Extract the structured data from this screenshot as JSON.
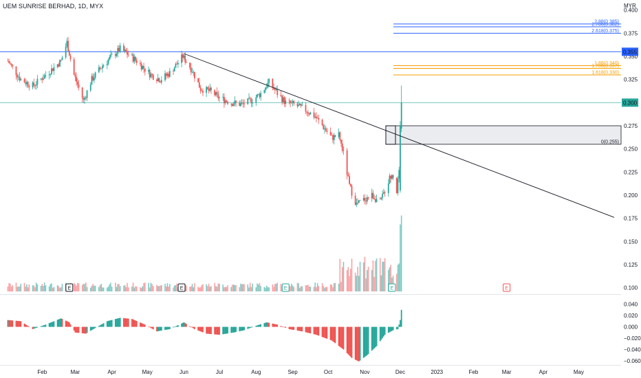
{
  "header": {
    "title": "UEM SUNRISE BERHAD, 1D, MYX"
  },
  "colors": {
    "up": "#26a69a",
    "down": "#ef5350",
    "fib_blue": "#2962ff",
    "fib_orange": "#f59d00",
    "resistance": "#2962ff",
    "current_line": "#26a69a",
    "trendline": "#131722"
  },
  "chart_data": [
    {
      "type": "candlestick",
      "title": "UEM SUNRISE BERHAD, 1D, MYX",
      "currency": "MYR",
      "y_ticks": [
        "0.400",
        "0.375",
        "0.350",
        "0.325",
        "0.300",
        "0.275",
        "0.250",
        "0.225",
        "0.200",
        "0.175",
        "0.150",
        "0.125",
        "0.100"
      ],
      "x_ticks": [
        "Feb",
        "Mar",
        "Apr",
        "May",
        "Jun",
        "Jul",
        "Aug",
        "Sep",
        "Oct",
        "Nov",
        "Dec",
        "2023",
        "Feb",
        "Mar",
        "Apr",
        "May"
      ],
      "ylim": [
        0.093,
        0.405
      ],
      "last_price": "0.300",
      "resistance_price": "0.355",
      "fib_levels": [
        {
          "label": "2.88(0.385)",
          "value": 0.385,
          "color": "blue"
        },
        {
          "label": "2.786(0.382)",
          "value": 0.382,
          "color": "blue"
        },
        {
          "label": "2.618(0.375)",
          "value": 0.375,
          "color": "blue"
        },
        {
          "label": "1.88(0.340)",
          "value": 0.34,
          "color": "orange"
        },
        {
          "label": "1.786(0.337)",
          "value": 0.337,
          "color": "orange"
        },
        {
          "label": "1.618(0.330)",
          "value": 0.33,
          "color": "orange"
        },
        {
          "label": "0(0.255)",
          "value": 0.255,
          "color": "gray"
        }
      ],
      "zone": {
        "low": 0.255,
        "high": 0.275
      },
      "trendline": {
        "start": {
          "date": "2022-06-01",
          "price": 0.353
        },
        "end": {
          "date": "2023-05-31",
          "price": 0.176
        }
      },
      "close_points": [
        {
          "date": "2022-01-03",
          "close": 0.345
        },
        {
          "date": "2022-01-14",
          "close": 0.325
        },
        {
          "date": "2022-01-24",
          "close": 0.318
        },
        {
          "date": "2022-02-04",
          "close": 0.33
        },
        {
          "date": "2022-02-17",
          "close": 0.345
        },
        {
          "date": "2022-02-22",
          "close": 0.365
        },
        {
          "date": "2022-02-28",
          "close": 0.33
        },
        {
          "date": "2022-03-08",
          "close": 0.302
        },
        {
          "date": "2022-03-15",
          "close": 0.325
        },
        {
          "date": "2022-03-24",
          "close": 0.34
        },
        {
          "date": "2022-04-01",
          "close": 0.35
        },
        {
          "date": "2022-04-08",
          "close": 0.358
        },
        {
          "date": "2022-04-15",
          "close": 0.352
        },
        {
          "date": "2022-04-22",
          "close": 0.345
        },
        {
          "date": "2022-05-04",
          "close": 0.33
        },
        {
          "date": "2022-05-12",
          "close": 0.325
        },
        {
          "date": "2022-05-20",
          "close": 0.332
        },
        {
          "date": "2022-05-31",
          "close": 0.35
        },
        {
          "date": "2022-06-08",
          "close": 0.335
        },
        {
          "date": "2022-06-15",
          "close": 0.315
        },
        {
          "date": "2022-06-24",
          "close": 0.312
        },
        {
          "date": "2022-07-01",
          "close": 0.305
        },
        {
          "date": "2022-07-11",
          "close": 0.3
        },
        {
          "date": "2022-07-20",
          "close": 0.298
        },
        {
          "date": "2022-07-29",
          "close": 0.303
        },
        {
          "date": "2022-08-05",
          "close": 0.31
        },
        {
          "date": "2022-08-12",
          "close": 0.322
        },
        {
          "date": "2022-08-19",
          "close": 0.31
        },
        {
          "date": "2022-08-26",
          "close": 0.3
        },
        {
          "date": "2022-09-02",
          "close": 0.298
        },
        {
          "date": "2022-09-12",
          "close": 0.292
        },
        {
          "date": "2022-09-20",
          "close": 0.285
        },
        {
          "date": "2022-09-28",
          "close": 0.272
        },
        {
          "date": "2022-10-04",
          "close": 0.262
        },
        {
          "date": "2022-10-10",
          "close": 0.265
        },
        {
          "date": "2022-10-14",
          "close": 0.245
        },
        {
          "date": "2022-10-19",
          "close": 0.21
        },
        {
          "date": "2022-10-25",
          "close": 0.19
        },
        {
          "date": "2022-10-31",
          "close": 0.195
        },
        {
          "date": "2022-11-07",
          "close": 0.2
        },
        {
          "date": "2022-11-14",
          "close": 0.192
        },
        {
          "date": "2022-11-21",
          "close": 0.215
        },
        {
          "date": "2022-11-24",
          "close": 0.225
        },
        {
          "date": "2022-11-28",
          "close": 0.205
        },
        {
          "date": "2022-11-30",
          "close": 0.225
        },
        {
          "date": "2022-12-01",
          "close": 0.275
        },
        {
          "date": "2022-12-02",
          "close": 0.3
        }
      ],
      "volume_markers": [
        "E",
        "E",
        "E",
        "E",
        "E"
      ]
    },
    {
      "type": "histogram",
      "name": "momentum",
      "y_ticks": [
        "0.040",
        "0.020",
        "0.000",
        "−0.020",
        "−0.040",
        "−0.060"
      ],
      "ylim": [
        -0.066,
        0.048
      ],
      "points": [
        {
          "date": "2022-01-03",
          "value": 0.012
        },
        {
          "date": "2022-01-14",
          "value": 0.01
        },
        {
          "date": "2022-01-24",
          "value": -0.004
        },
        {
          "date": "2022-02-04",
          "value": 0.004
        },
        {
          "date": "2022-02-17",
          "value": 0.015
        },
        {
          "date": "2022-02-24",
          "value": 0.008
        },
        {
          "date": "2022-03-01",
          "value": -0.01
        },
        {
          "date": "2022-03-10",
          "value": -0.012
        },
        {
          "date": "2022-03-18",
          "value": -0.002
        },
        {
          "date": "2022-03-28",
          "value": 0.01
        },
        {
          "date": "2022-04-08",
          "value": 0.016
        },
        {
          "date": "2022-04-18",
          "value": 0.014
        },
        {
          "date": "2022-04-29",
          "value": 0.004
        },
        {
          "date": "2022-05-09",
          "value": -0.008
        },
        {
          "date": "2022-05-20",
          "value": -0.004
        },
        {
          "date": "2022-06-01",
          "value": 0.008
        },
        {
          "date": "2022-06-10",
          "value": -0.004
        },
        {
          "date": "2022-06-20",
          "value": -0.012
        },
        {
          "date": "2022-07-01",
          "value": -0.014
        },
        {
          "date": "2022-07-13",
          "value": -0.01
        },
        {
          "date": "2022-07-22",
          "value": -0.006
        },
        {
          "date": "2022-08-01",
          "value": 0.002
        },
        {
          "date": "2022-08-10",
          "value": 0.008
        },
        {
          "date": "2022-08-19",
          "value": 0.004
        },
        {
          "date": "2022-08-29",
          "value": -0.004
        },
        {
          "date": "2022-09-09",
          "value": -0.008
        },
        {
          "date": "2022-09-21",
          "value": -0.014
        },
        {
          "date": "2022-10-04",
          "value": -0.024
        },
        {
          "date": "2022-10-14",
          "value": -0.04
        },
        {
          "date": "2022-10-21",
          "value": -0.055
        },
        {
          "date": "2022-10-27",
          "value": -0.061
        },
        {
          "date": "2022-11-03",
          "value": -0.05
        },
        {
          "date": "2022-11-11",
          "value": -0.034
        },
        {
          "date": "2022-11-18",
          "value": -0.014
        },
        {
          "date": "2022-11-25",
          "value": -0.006
        },
        {
          "date": "2022-11-29",
          "value": -0.004
        },
        {
          "date": "2022-12-01",
          "value": 0.012
        },
        {
          "date": "2022-12-02",
          "value": 0.03
        }
      ]
    }
  ]
}
